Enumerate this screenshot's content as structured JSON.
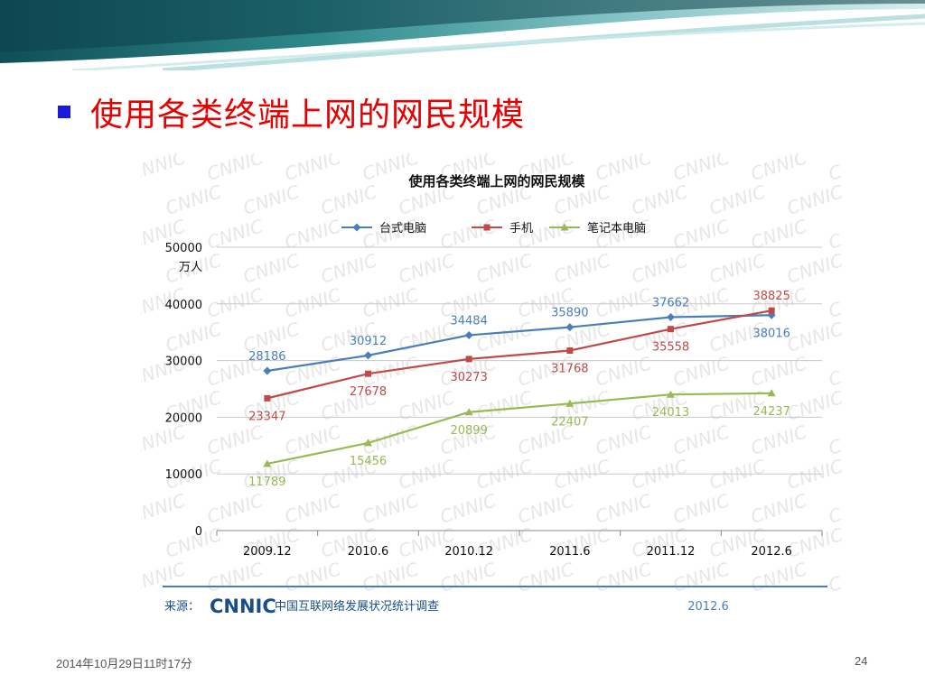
{
  "slide": {
    "title": "使用各类终端上网的网民规模",
    "date": "2014年10月29日11时17分",
    "page_number": "24"
  },
  "watermark": {
    "text": "CNNIC"
  },
  "source": {
    "label": "来源：",
    "logo": "CNNIC",
    "survey": "中国互联网络发展状况统计调查",
    "date": "2012.6"
  },
  "colors": {
    "title": "#e60000",
    "bullet": "#1a1adb",
    "desktop": "#4a7ebb",
    "mobile": "#be4b48",
    "laptop": "#98b954"
  },
  "chart_data": {
    "type": "line",
    "title": "使用各类终端上网的网民规模",
    "ylabel": "万人",
    "xlabel": "",
    "categories": [
      "2009.12",
      "2010.6",
      "2010.12",
      "2011.6",
      "2011.12",
      "2012.6"
    ],
    "ylim": [
      0,
      50000
    ],
    "yticks": [
      "0",
      "10000",
      "20000",
      "30000",
      "40000",
      "50000"
    ],
    "grid": true,
    "legend_position": "top",
    "series": [
      {
        "name": "台式电脑",
        "color": "#4a7ebb",
        "marker": "diamond",
        "values": [
          28186,
          30912,
          34484,
          35890,
          37662,
          38016
        ]
      },
      {
        "name": "手机",
        "color": "#be4b48",
        "marker": "square",
        "values": [
          23347,
          27678,
          30273,
          31768,
          35558,
          38825
        ]
      },
      {
        "name": "笔记本电脑",
        "color": "#98b954",
        "marker": "triangle",
        "values": [
          11789,
          15456,
          20899,
          22407,
          24013,
          24237
        ]
      }
    ]
  }
}
